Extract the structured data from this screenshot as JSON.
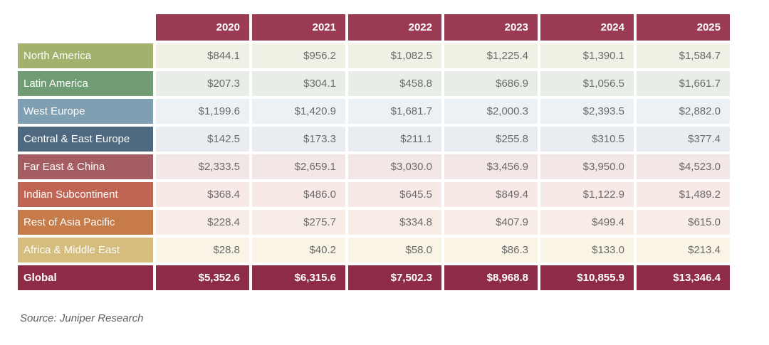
{
  "table": {
    "header_bg": "#9a3a53",
    "years": [
      "2020",
      "2021",
      "2022",
      "2023",
      "2024",
      "2025"
    ],
    "rows": [
      {
        "label": "North America",
        "label_bg": "#a2b16b",
        "cell_bg": "#f0f1e4",
        "values": [
          "$844.1",
          "$956.2",
          "$1,082.5",
          "$1,225.4",
          "$1,390.1",
          "$1,584.7"
        ]
      },
      {
        "label": "Latin America",
        "label_bg": "#6f9c72",
        "cell_bg": "#e8eee7",
        "values": [
          "$207.3",
          "$304.1",
          "$458.8",
          "$686.9",
          "$1,056.5",
          "$1,661.7"
        ]
      },
      {
        "label": "West Europe",
        "label_bg": "#7f9fb3",
        "cell_bg": "#ebf1f4",
        "values": [
          "$1,199.6",
          "$1,420.9",
          "$1,681.7",
          "$2,000.3",
          "$2,393.5",
          "$2,882.0"
        ]
      },
      {
        "label": "Central & East Europe",
        "label_bg": "#4f6a80",
        "cell_bg": "#e9edf1",
        "values": [
          "$142.5",
          "$173.3",
          "$211.1",
          "$255.8",
          "$310.5",
          "$377.4"
        ]
      },
      {
        "label": "Far East & China",
        "label_bg": "#a55d64",
        "cell_bg": "#f3e6e7",
        "values": [
          "$2,333.5",
          "$2,659.1",
          "$3,030.0",
          "$3,456.9",
          "$3,950.0",
          "$4,523.0"
        ]
      },
      {
        "label": "Indian Subcontinent",
        "label_bg": "#c06553",
        "cell_bg": "#f7e9e6",
        "values": [
          "$368.4",
          "$486.0",
          "$645.5",
          "$849.4",
          "$1,122.9",
          "$1,489.2"
        ]
      },
      {
        "label": "Rest of Asia Pacific",
        "label_bg": "#c77b49",
        "cell_bg": "#f8ede6",
        "values": [
          "$228.4",
          "$275.7",
          "$334.8",
          "$407.9",
          "$499.4",
          "$615.0"
        ]
      },
      {
        "label": "Africa & Middle East",
        "label_bg": "#d5bd7d",
        "cell_bg": "#faf4e6",
        "values": [
          "$28.8",
          "$40.2",
          "$58.0",
          "$86.3",
          "$133.0",
          "$213.4"
        ]
      },
      {
        "label": "Global",
        "label_bg": "#8e2c47",
        "cell_bg": "#8e2c47",
        "is_total": true,
        "values": [
          "$5,352.6",
          "$6,315.6",
          "$7,502.3",
          "$8,968.8",
          "$10,855.9",
          "$13,346.4"
        ]
      }
    ]
  },
  "source": "Source: Juniper Research",
  "chart_data": {
    "type": "table",
    "title": "",
    "categories": [
      "2020",
      "2021",
      "2022",
      "2023",
      "2024",
      "2025"
    ],
    "series": [
      {
        "name": "North America",
        "values": [
          844.1,
          956.2,
          1082.5,
          1225.4,
          1390.1,
          1584.7
        ]
      },
      {
        "name": "Latin America",
        "values": [
          207.3,
          304.1,
          458.8,
          686.9,
          1056.5,
          1661.7
        ]
      },
      {
        "name": "West Europe",
        "values": [
          1199.6,
          1420.9,
          1681.7,
          2000.3,
          2393.5,
          2882.0
        ]
      },
      {
        "name": "Central & East Europe",
        "values": [
          142.5,
          173.3,
          211.1,
          255.8,
          310.5,
          377.4
        ]
      },
      {
        "name": "Far East & China",
        "values": [
          2333.5,
          2659.1,
          3030.0,
          3456.9,
          3950.0,
          4523.0
        ]
      },
      {
        "name": "Indian Subcontinent",
        "values": [
          368.4,
          486.0,
          645.5,
          849.4,
          1122.9,
          1489.2
        ]
      },
      {
        "name": "Rest of Asia Pacific",
        "values": [
          228.4,
          275.7,
          334.8,
          407.9,
          499.4,
          615.0
        ]
      },
      {
        "name": "Africa & Middle East",
        "values": [
          28.8,
          40.2,
          58.0,
          86.3,
          133.0,
          213.4
        ]
      },
      {
        "name": "Global",
        "values": [
          5352.6,
          6315.6,
          7502.3,
          8968.8,
          10855.9,
          13346.4
        ]
      }
    ],
    "value_prefix": "$",
    "annotations": [
      "Source: Juniper Research"
    ]
  }
}
